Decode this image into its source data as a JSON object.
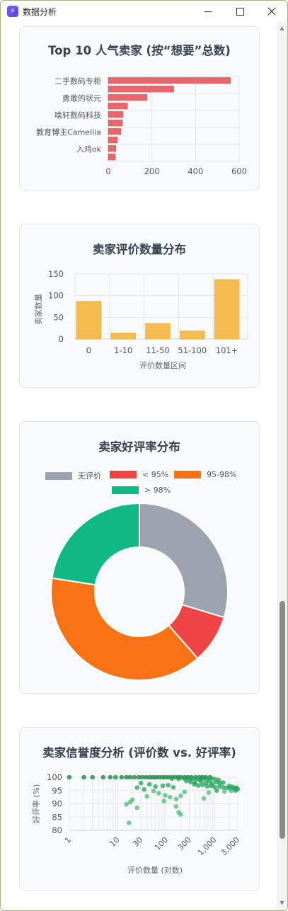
{
  "window": {
    "title": "数据分析",
    "minimize_icon": "minimize-icon",
    "maximize_icon": "maximize-icon",
    "close_icon": "close-icon"
  },
  "cards": {
    "top_sellers": {
      "title": "Top 10 人气卖家 (按“想要”总数)"
    },
    "review_count": {
      "title": "卖家评价数量分布"
    },
    "rating": {
      "title": "卖家好评率分布"
    },
    "credibility": {
      "title": "卖家信誉度分析 (评价数 vs. 好评率)"
    }
  },
  "colors": {
    "bar_red": "#e8676f",
    "bar_amber": "#f6bb4e",
    "gray": "#9ca3af",
    "red": "#ef4444",
    "orange": "#f97316",
    "green": "#10b981",
    "scatter_green": "#16a34a"
  },
  "chart_data": [
    {
      "type": "bar",
      "orientation": "horizontal",
      "title": "Top 10 人气卖家 (按“想要”总数)",
      "categories": [
        "二手数码专柜",
        "",
        "勇敢的状元",
        "",
        "啥轩数码科技",
        "",
        "教育博主Camellia",
        "",
        "入鸡ok",
        ""
      ],
      "values": [
        560,
        300,
        178,
        88,
        68,
        65,
        58,
        42,
        35,
        32
      ],
      "xlim": [
        0,
        600
      ],
      "xticks": [
        "0",
        "200",
        "400",
        "600"
      ],
      "grid": true
    },
    {
      "type": "bar",
      "title": "卖家评价数量分布",
      "categories": [
        "0",
        "1-10",
        "11-50",
        "51-100",
        "101+"
      ],
      "values": [
        87,
        14,
        36,
        19,
        137
      ],
      "ylim": [
        0,
        150
      ],
      "yticks": [
        "0",
        "50",
        "100",
        "150"
      ],
      "xlabel": "评价数量区间",
      "ylabel": "卖家数量",
      "grid": true
    },
    {
      "type": "pie",
      "variant": "doughnut",
      "title": "卖家好评率分布",
      "legend_position": "top",
      "labels": [
        "无评价",
        "< 95%",
        "95-98%",
        "> 98%"
      ],
      "values": [
        87,
        26,
        114,
        66
      ],
      "colors": [
        "#9ca3af",
        "#ef4444",
        "#f97316",
        "#10b981"
      ]
    },
    {
      "type": "scatter",
      "title": "卖家信誉度分析 (评价数 vs. 好评率)",
      "xlabel": "评价数量 (对数)",
      "ylabel": "好评率 (%)",
      "xscale": "log",
      "xlim": [
        1,
        3000
      ],
      "ylim": [
        80,
        100
      ],
      "xticks": [
        "1",
        "10",
        "30",
        "100",
        "300",
        "1,000",
        "3,000"
      ],
      "yticks": [
        "80",
        "85",
        "90",
        "95",
        "100"
      ],
      "points": [
        [
          1,
          100
        ],
        [
          2,
          100
        ],
        [
          3,
          100
        ],
        [
          5,
          100
        ],
        [
          7,
          100
        ],
        [
          9,
          100
        ],
        [
          12,
          100
        ],
        [
          15,
          100
        ],
        [
          18,
          100
        ],
        [
          22,
          100
        ],
        [
          27,
          100
        ],
        [
          32,
          100
        ],
        [
          38,
          100
        ],
        [
          45,
          100
        ],
        [
          52,
          100
        ],
        [
          60,
          100
        ],
        [
          70,
          100
        ],
        [
          82,
          100
        ],
        [
          95,
          100
        ],
        [
          110,
          100
        ],
        [
          130,
          100
        ],
        [
          150,
          100
        ],
        [
          175,
          100
        ],
        [
          200,
          100
        ],
        [
          240,
          100
        ],
        [
          280,
          100
        ],
        [
          330,
          100
        ],
        [
          400,
          100
        ],
        [
          480,
          100
        ],
        [
          560,
          100
        ],
        [
          650,
          100
        ],
        [
          800,
          100
        ],
        [
          130,
          99.5
        ],
        [
          180,
          99.4
        ],
        [
          230,
          99.6
        ],
        [
          300,
          99.2
        ],
        [
          350,
          99.4
        ],
        [
          420,
          99.3
        ],
        [
          500,
          99.1
        ],
        [
          600,
          99.5
        ],
        [
          700,
          99.2
        ],
        [
          850,
          99.6
        ],
        [
          1000,
          99.3
        ],
        [
          1200,
          99.0
        ],
        [
          260,
          98.6
        ],
        [
          320,
          98.2
        ],
        [
          400,
          98.0
        ],
        [
          520,
          98.5
        ],
        [
          650,
          97.8
        ],
        [
          780,
          98.3
        ],
        [
          900,
          97.6
        ],
        [
          1100,
          98.1
        ],
        [
          1300,
          97.7
        ],
        [
          1500,
          98.0
        ],
        [
          380,
          97.3
        ],
        [
          460,
          96.9
        ],
        [
          560,
          97.1
        ],
        [
          700,
          96.6
        ],
        [
          850,
          96.8
        ],
        [
          1000,
          96.3
        ],
        [
          1250,
          96.5
        ],
        [
          1500,
          96.2
        ],
        [
          1800,
          96.0
        ],
        [
          2100,
          95.8
        ],
        [
          2500,
          95.9
        ],
        [
          2800,
          96.1
        ],
        [
          3000,
          95.5
        ],
        [
          2700,
          95.0
        ],
        [
          2300,
          96.4
        ],
        [
          2000,
          96.7
        ],
        [
          30,
          97.8
        ],
        [
          45,
          97.3
        ],
        [
          60,
          96.5
        ],
        [
          85,
          96.8
        ],
        [
          110,
          97.0
        ],
        [
          140,
          96.2
        ],
        [
          25,
          96.1
        ],
        [
          35,
          95.4
        ],
        [
          55,
          94.8
        ],
        [
          70,
          94.0
        ],
        [
          95,
          93.2
        ],
        [
          120,
          92.5
        ],
        [
          160,
          91.8
        ],
        [
          200,
          93.0
        ],
        [
          240,
          94.5
        ],
        [
          160,
          89.0
        ],
        [
          180,
          86.8
        ],
        [
          200,
          86.0
        ],
        [
          90,
          91.0
        ],
        [
          40,
          92.8
        ],
        [
          20,
          91.5
        ],
        [
          18,
          90.6
        ],
        [
          15,
          89.8
        ],
        [
          25,
          88.5
        ],
        [
          17,
          82.8
        ],
        [
          600,
          92.0
        ],
        [
          750,
          94.2
        ],
        [
          1100,
          95.0
        ],
        [
          1600,
          94.6
        ],
        [
          2200,
          94.9
        ]
      ],
      "grid": true
    }
  ]
}
